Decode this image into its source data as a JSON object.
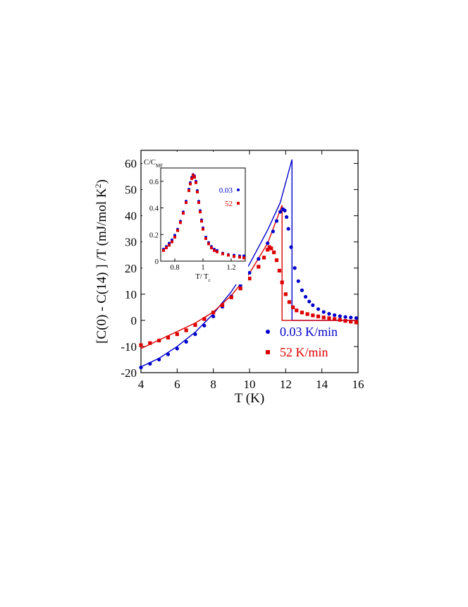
{
  "chart_data": [
    {
      "type": "scatter",
      "xlabel": "T (K)",
      "ylabel_parts": {
        "main": "[C(0) - C(14) ] /T (mJ/mol K",
        "sup": "2",
        "end": ")"
      },
      "xlim": [
        4,
        16
      ],
      "ylim": [
        -20,
        65
      ],
      "x_ticks": [
        4,
        6,
        8,
        10,
        12,
        14,
        16
      ],
      "y_ticks": [
        -20,
        -10,
        0,
        10,
        20,
        30,
        40,
        50,
        60
      ],
      "grid": false,
      "legend_position": "lower-right",
      "series": [
        {
          "name": "0.03 K/min",
          "color": "#0000cc",
          "marker": "circle",
          "points": [
            [
              4.0,
              -18.0
            ],
            [
              4.5,
              -16.6
            ],
            [
              5.0,
              -15.0
            ],
            [
              5.5,
              -13.0
            ],
            [
              6.0,
              -10.8
            ],
            [
              6.5,
              -8.2
            ],
            [
              7.0,
              -5.3
            ],
            [
              7.5,
              -2.0
            ],
            [
              8.0,
              1.5
            ],
            [
              8.5,
              5.2
            ],
            [
              9.0,
              9.2
            ],
            [
              9.5,
              13.5
            ],
            [
              10.0,
              18.2
            ],
            [
              10.5,
              23.5
            ],
            [
              11.0,
              29.5
            ],
            [
              11.3,
              34.0
            ],
            [
              11.5,
              38.0
            ],
            [
              11.7,
              41.5
            ],
            [
              11.85,
              42.5
            ],
            [
              11.95,
              42.0
            ],
            [
              12.05,
              39.5
            ],
            [
              12.15,
              35.0
            ],
            [
              12.3,
              28.0
            ],
            [
              12.5,
              20.0
            ],
            [
              12.7,
              15.0
            ],
            [
              12.9,
              11.5
            ],
            [
              13.1,
              9.0
            ],
            [
              13.3,
              7.2
            ],
            [
              13.5,
              5.8
            ],
            [
              13.8,
              4.3
            ],
            [
              14.1,
              3.2
            ],
            [
              14.4,
              2.5
            ],
            [
              14.7,
              2.0
            ],
            [
              15.0,
              1.6
            ],
            [
              15.3,
              1.3
            ],
            [
              15.6,
              1.1
            ],
            [
              15.9,
              0.9
            ]
          ]
        },
        {
          "name": "52 K/min",
          "color": "#dd0000",
          "marker": "square",
          "points": [
            [
              4.0,
              -9.5
            ],
            [
              4.5,
              -8.7
            ],
            [
              5.0,
              -7.7
            ],
            [
              5.5,
              -6.6
            ],
            [
              6.0,
              -5.3
            ],
            [
              6.5,
              -3.8
            ],
            [
              7.0,
              -1.8
            ],
            [
              7.5,
              0.5
            ],
            [
              8.0,
              3.0
            ],
            [
              8.5,
              5.8
            ],
            [
              9.0,
              8.8
            ],
            [
              9.5,
              12.2
            ],
            [
              10.0,
              16.0
            ],
            [
              10.5,
              20.5
            ],
            [
              10.8,
              24.0
            ],
            [
              11.0,
              27.0
            ],
            [
              11.1,
              28.0
            ],
            [
              11.2,
              27.5
            ],
            [
              11.35,
              26.0
            ],
            [
              11.5,
              23.0
            ],
            [
              11.65,
              19.0
            ],
            [
              11.8,
              14.5
            ],
            [
              12.0,
              10.0
            ],
            [
              12.2,
              7.0
            ],
            [
              12.4,
              5.0
            ],
            [
              12.6,
              3.8
            ],
            [
              12.9,
              3.0
            ],
            [
              13.2,
              2.4
            ],
            [
              13.5,
              1.9
            ],
            [
              13.8,
              1.5
            ],
            [
              14.1,
              1.1
            ],
            [
              14.4,
              0.8
            ],
            [
              14.7,
              0.5
            ],
            [
              15.0,
              0.2
            ],
            [
              15.3,
              -0.2
            ],
            [
              15.6,
              -0.5
            ],
            [
              15.9,
              -0.8
            ]
          ]
        }
      ],
      "fit_curves": [
        {
          "color": "#0000cc",
          "points": [
            [
              4.0,
              -17.8
            ],
            [
              5.0,
              -14.5
            ],
            [
              6.0,
              -10.0
            ],
            [
              7.0,
              -4.5
            ],
            [
              8.0,
              2.5
            ],
            [
              9.0,
              11.0
            ],
            [
              10.0,
              21.5
            ],
            [
              11.0,
              34.5
            ],
            [
              11.7,
              45.0
            ],
            [
              12.35,
              61.5
            ],
            [
              12.35,
              0
            ],
            [
              16.0,
              0
            ]
          ]
        },
        {
          "color": "#dd0000",
          "points": [
            [
              4.0,
              -10.8
            ],
            [
              5.0,
              -7.5
            ],
            [
              6.0,
              -4.3
            ],
            [
              7.0,
              -1.0
            ],
            [
              8.0,
              3.2
            ],
            [
              9.0,
              9.5
            ],
            [
              10.0,
              18.0
            ],
            [
              11.0,
              29.5
            ],
            [
              11.8,
              44.0
            ],
            [
              11.8,
              0
            ],
            [
              16.0,
              0
            ]
          ]
        }
      ]
    },
    {
      "type": "scatter",
      "ylabel_parts": {
        "main": "C/C",
        "sub": "MF"
      },
      "xlabel_parts": {
        "main": "T/ T",
        "sub": "c"
      },
      "xlim": [
        0.7,
        1.3
      ],
      "ylim": [
        0,
        0.7
      ],
      "x_ticks": [
        0.8,
        1,
        1.2
      ],
      "y_ticks": [
        0,
        0.2,
        0.4,
        0.6
      ],
      "legend_position": "right",
      "series": [
        {
          "name": "0.03",
          "color": "#0000cc",
          "marker": "circle",
          "points": [
            [
              0.72,
              0.09
            ],
            [
              0.74,
              0.11
            ],
            [
              0.76,
              0.135
            ],
            [
              0.78,
              0.16
            ],
            [
              0.8,
              0.195
            ],
            [
              0.82,
              0.24
            ],
            [
              0.84,
              0.3
            ],
            [
              0.86,
              0.37
            ],
            [
              0.88,
              0.45
            ],
            [
              0.9,
              0.54
            ],
            [
              0.91,
              0.59
            ],
            [
              0.92,
              0.63
            ],
            [
              0.93,
              0.65
            ],
            [
              0.94,
              0.64
            ],
            [
              0.95,
              0.6
            ],
            [
              0.96,
              0.53
            ],
            [
              0.97,
              0.45
            ],
            [
              0.98,
              0.38
            ],
            [
              0.99,
              0.31
            ],
            [
              1.0,
              0.25
            ],
            [
              1.02,
              0.18
            ],
            [
              1.04,
              0.14
            ],
            [
              1.06,
              0.11
            ],
            [
              1.08,
              0.09
            ],
            [
              1.1,
              0.08
            ],
            [
              1.14,
              0.06
            ],
            [
              1.18,
              0.05
            ],
            [
              1.22,
              0.045
            ],
            [
              1.26,
              0.04
            ],
            [
              1.29,
              0.04
            ]
          ]
        },
        {
          "name": "52",
          "color": "#dd0000",
          "marker": "square",
          "points": [
            [
              0.72,
              0.08
            ],
            [
              0.74,
              0.1
            ],
            [
              0.76,
              0.12
            ],
            [
              0.78,
              0.145
            ],
            [
              0.8,
              0.18
            ],
            [
              0.82,
              0.23
            ],
            [
              0.84,
              0.29
            ],
            [
              0.86,
              0.36
            ],
            [
              0.88,
              0.44
            ],
            [
              0.9,
              0.53
            ],
            [
              0.91,
              0.58
            ],
            [
              0.92,
              0.62
            ],
            [
              0.93,
              0.645
            ],
            [
              0.94,
              0.63
            ],
            [
              0.95,
              0.59
            ],
            [
              0.96,
              0.52
            ],
            [
              0.97,
              0.44
            ],
            [
              0.98,
              0.37
            ],
            [
              0.99,
              0.3
            ],
            [
              1.0,
              0.24
            ],
            [
              1.02,
              0.17
            ],
            [
              1.04,
              0.13
            ],
            [
              1.06,
              0.1
            ],
            [
              1.08,
              0.08
            ],
            [
              1.1,
              0.07
            ],
            [
              1.14,
              0.055
            ],
            [
              1.18,
              0.045
            ],
            [
              1.22,
              0.035
            ],
            [
              1.26,
              0.03
            ],
            [
              1.29,
              0.025
            ]
          ]
        }
      ]
    }
  ]
}
